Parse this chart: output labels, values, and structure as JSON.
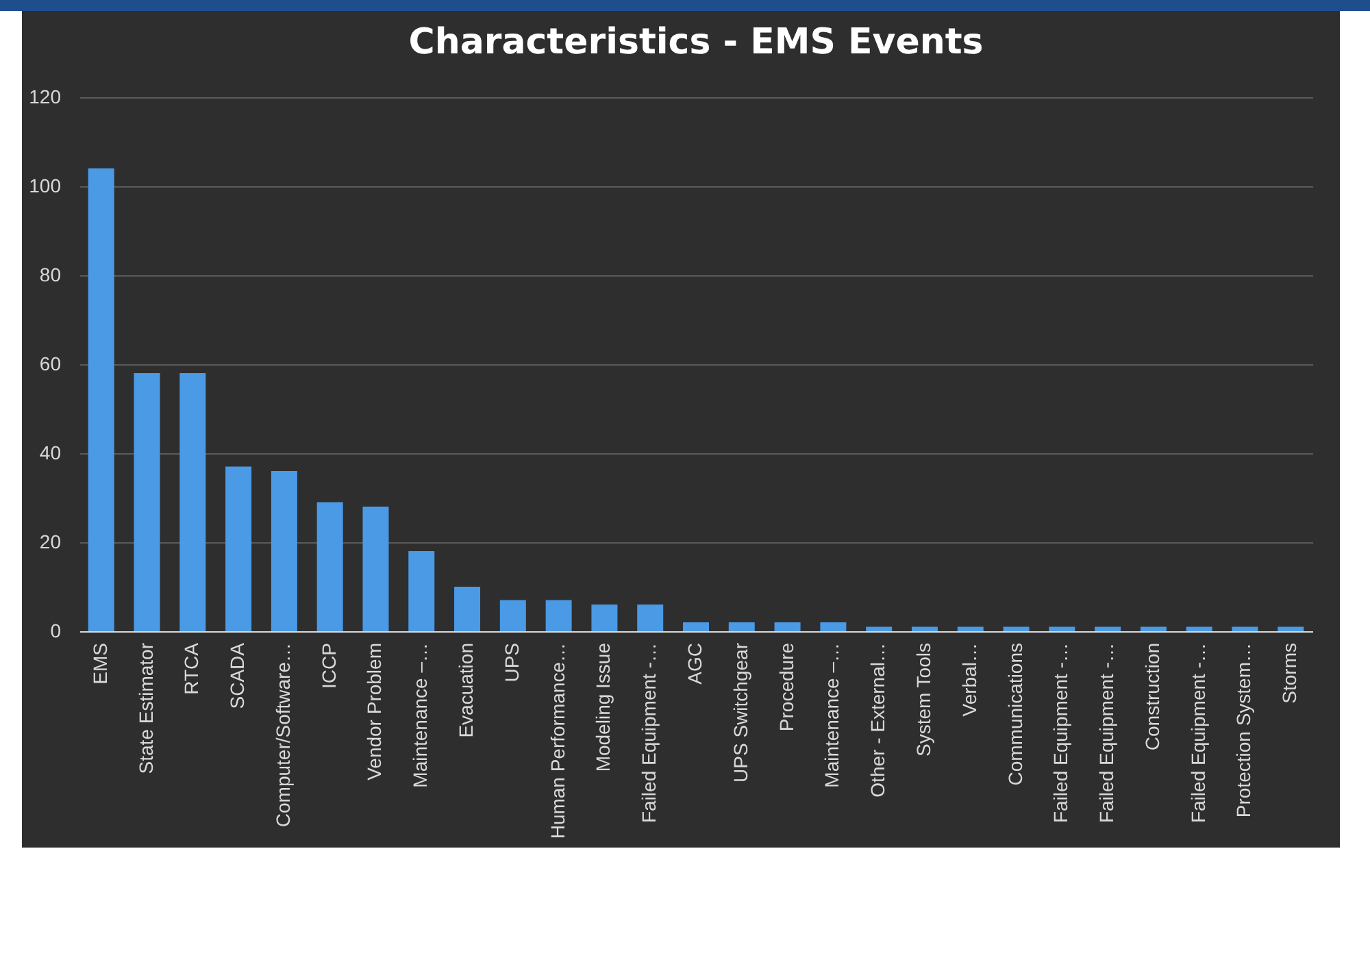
{
  "chart_data": {
    "type": "bar",
    "title": "Characteristics - EMS Events",
    "categories": [
      "EMS",
      "State Estimator",
      "RTCA",
      "SCADA",
      "Computer/Software…",
      "ICCP",
      "Vendor Problem",
      "Maintenance –…",
      "Evacuation",
      "UPS",
      "Human Performance…",
      "Modeling Issue",
      "Failed Equipment -…",
      "AGC",
      "UPS Switchgear",
      "Procedure",
      "Maintenance –…",
      "Other - External…",
      "System Tools",
      "Verbal…",
      "Communications",
      "Failed Equipment -…",
      "Failed Equipment -…",
      "Construction",
      "Failed Equipment -…",
      "Protection System…",
      "Storms"
    ],
    "values": [
      104,
      58,
      58,
      37,
      36,
      29,
      28,
      18,
      10,
      7,
      7,
      6,
      6,
      2,
      2,
      2,
      2,
      1,
      1,
      1,
      1,
      1,
      1,
      1,
      1,
      1,
      1
    ],
    "color": "#4a9ae6",
    "ylim": [
      0,
      120
    ],
    "yticks": [
      0,
      20,
      40,
      60,
      80,
      100,
      120
    ],
    "grid": "y"
  }
}
